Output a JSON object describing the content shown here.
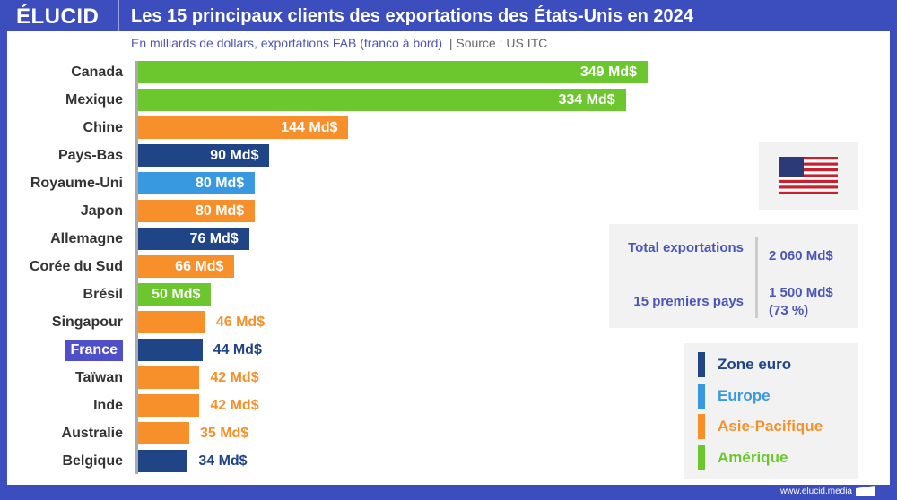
{
  "header": {
    "logo": "ÉLUCID",
    "title": "Les 15 principaux clients des exportations des États-Unis en 2024",
    "subtitle": "En milliards de dollars, exportations FAB (franco à bord)",
    "source": "|  Source : US ITC"
  },
  "colors": {
    "Zone euro": "#1f4587",
    "Europe": "#3898e0",
    "Asie-Pacifique": "#f7902a",
    "Amérique": "#6cc72e"
  },
  "chart_data": {
    "type": "bar",
    "orientation": "horizontal",
    "unit": "Md$",
    "categories": [
      "Canada",
      "Mexique",
      "Chine",
      "Pays-Bas",
      "Royaume-Uni",
      "Japon",
      "Allemagne",
      "Corée du Sud",
      "Brésil",
      "Singapour",
      "France",
      "Taïwan",
      "Inde",
      "Australie",
      "Belgique"
    ],
    "values": [
      349,
      334,
      144,
      90,
      80,
      80,
      76,
      66,
      50,
      46,
      44,
      42,
      42,
      35,
      34
    ],
    "value_labels": [
      "349 Md$",
      "334 Md$",
      "144 Md$",
      "90 Md$",
      "80 Md$",
      "80 Md$",
      "76 Md$",
      "66 Md$",
      "50 Md$",
      "46 Md$",
      "44 Md$",
      "42 Md$",
      "42 Md$",
      "35 Md$",
      "34 Md$"
    ],
    "groups": [
      "Amérique",
      "Amérique",
      "Asie-Pacifique",
      "Zone euro",
      "Europe",
      "Asie-Pacifique",
      "Zone euro",
      "Asie-Pacifique",
      "Amérique",
      "Asie-Pacifique",
      "Zone euro",
      "Asie-Pacifique",
      "Asie-Pacifique",
      "Asie-Pacifique",
      "Zone euro"
    ],
    "highlighted": "France",
    "legend": [
      "Zone euro",
      "Europe",
      "Asie-Pacifique",
      "Amérique"
    ],
    "legend_position": "bottom-right"
  },
  "totals": {
    "total_label": "Total exportations",
    "total_value": "2 060 Md$",
    "top_label": "15 premiers pays",
    "top_value": "1 500 Md$",
    "top_share": "(73 %)"
  },
  "footer": {
    "website": "www.elucid.media"
  }
}
